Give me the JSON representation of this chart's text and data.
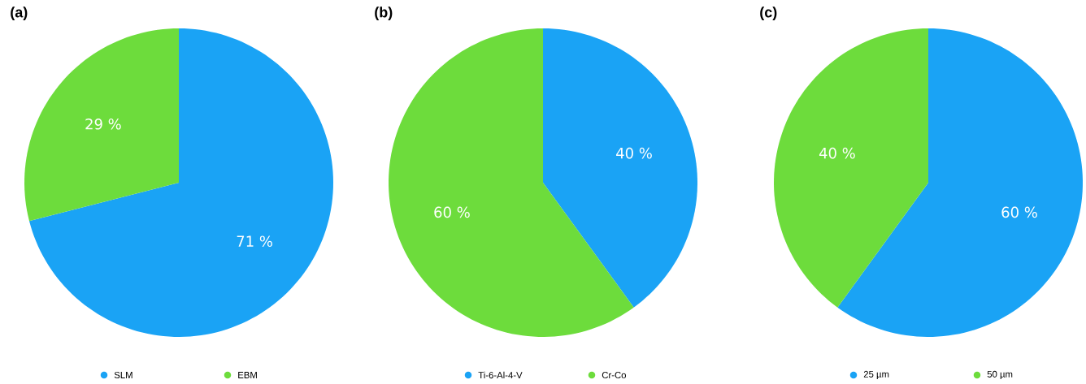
{
  "chart_data": [
    {
      "type": "pie",
      "title": "(a)",
      "categories": [
        "SLM",
        "EBM"
      ],
      "values": [
        71,
        29
      ],
      "colors": [
        "#1aa3f5",
        "#6ddc3c"
      ],
      "value_labels": [
        "71 %",
        "29 %"
      ],
      "legend": "bottom"
    },
    {
      "type": "pie",
      "title": "(b)",
      "categories": [
        "Ti-6-Al-4-V",
        "Cr-Co"
      ],
      "values": [
        40,
        60
      ],
      "colors": [
        "#1aa3f5",
        "#6ddc3c"
      ],
      "value_labels": [
        "40 %",
        "60 %"
      ],
      "legend": "bottom"
    },
    {
      "type": "pie",
      "title": "(c)",
      "categories": [
        "25 µm",
        "50 µm"
      ],
      "values": [
        60,
        40
      ],
      "colors": [
        "#1aa3f5",
        "#6ddc3c"
      ],
      "value_labels": [
        "60 %",
        "40 %"
      ],
      "legend": "bottom"
    }
  ]
}
